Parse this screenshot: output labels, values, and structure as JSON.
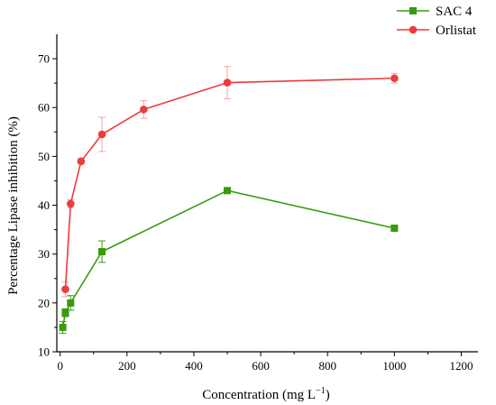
{
  "chart_data": {
    "type": "line",
    "xlabel": "Concentration (mg L",
    "xlabel_sup": "−1",
    "xlabel_end": ")",
    "ylabel": "Percentage Lipase inhibition (%)",
    "xlim": [
      -10,
      1250
    ],
    "ylim": [
      10,
      75
    ],
    "xticks": [
      0,
      200,
      400,
      600,
      800,
      1000,
      1200
    ],
    "yticks": [
      10,
      20,
      30,
      40,
      50,
      60,
      70
    ],
    "legend_position": "top-right",
    "grid": false,
    "series": [
      {
        "name": "SAC 4",
        "color": "#3a9a0e",
        "marker": "square",
        "x": [
          7.8,
          15.6,
          31.25,
          125,
          500,
          1000
        ],
        "y": [
          15.0,
          18.0,
          20.0,
          30.5,
          43.0,
          35.3
        ],
        "err": [
          1.2,
          0.8,
          1.5,
          2.2,
          0.5,
          0.4
        ]
      },
      {
        "name": "Orlistat",
        "color": "#ee3b3b",
        "marker": "circle",
        "x": [
          15.6,
          31.25,
          62.5,
          125,
          250,
          500,
          1000
        ],
        "y": [
          22.8,
          40.3,
          49.0,
          54.5,
          59.6,
          65.1,
          66.0
        ],
        "err": [
          1.5,
          0.8,
          0.5,
          3.5,
          1.8,
          3.3,
          1.0
        ]
      }
    ]
  }
}
